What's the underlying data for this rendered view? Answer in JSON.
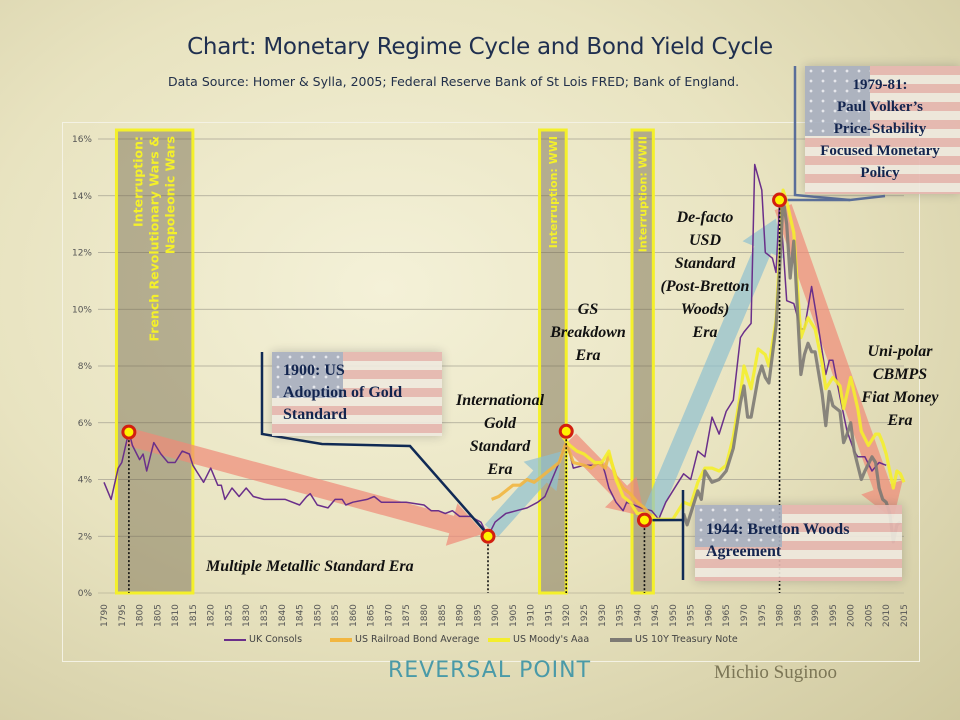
{
  "title": "Chart: Monetary Regime Cycle and Bond Yield Cycle",
  "subtitle": "Data Source: Homer & Sylla, 2005; Federal Reserve Bank of St Lois FRED; Bank of England.",
  "footer": {
    "brand": "REVERSAL POINT",
    "author": "Michio Suginoo"
  },
  "chart_data": {
    "type": "line",
    "xlim": [
      1790,
      2015
    ],
    "ylim": [
      0,
      16
    ],
    "x_ticks_step": 5,
    "y_ticks": [
      "0%",
      "2%",
      "4%",
      "6%",
      "8%",
      "10%",
      "12%",
      "14%",
      "16%"
    ],
    "grid": true,
    "legend_position": "bottom",
    "series": [
      {
        "name": "UK Consols",
        "color": "#6a2f8a",
        "points": [
          [
            1790,
            3.9
          ],
          [
            1792,
            3.3
          ],
          [
            1794,
            4.4
          ],
          [
            1795,
            4.6
          ],
          [
            1797,
            5.7
          ],
          [
            1798,
            5.2
          ],
          [
            1800,
            4.7
          ],
          [
            1801,
            4.9
          ],
          [
            1802,
            4.3
          ],
          [
            1804,
            5.3
          ],
          [
            1806,
            4.9
          ],
          [
            1808,
            4.6
          ],
          [
            1810,
            4.6
          ],
          [
            1812,
            5.0
          ],
          [
            1814,
            4.9
          ],
          [
            1815,
            4.5
          ],
          [
            1816,
            4.3
          ],
          [
            1818,
            3.9
          ],
          [
            1820,
            4.4
          ],
          [
            1822,
            3.8
          ],
          [
            1823,
            3.8
          ],
          [
            1824,
            3.3
          ],
          [
            1826,
            3.7
          ],
          [
            1828,
            3.4
          ],
          [
            1830,
            3.7
          ],
          [
            1832,
            3.4
          ],
          [
            1835,
            3.3
          ],
          [
            1838,
            3.3
          ],
          [
            1841,
            3.3
          ],
          [
            1845,
            3.1
          ],
          [
            1847,
            3.4
          ],
          [
            1848,
            3.5
          ],
          [
            1850,
            3.1
          ],
          [
            1853,
            3.0
          ],
          [
            1855,
            3.3
          ],
          [
            1857,
            3.3
          ],
          [
            1858,
            3.1
          ],
          [
            1860,
            3.2
          ],
          [
            1864,
            3.3
          ],
          [
            1866,
            3.4
          ],
          [
            1868,
            3.2
          ],
          [
            1870,
            3.2
          ],
          [
            1875,
            3.2
          ],
          [
            1880,
            3.1
          ],
          [
            1882,
            2.9
          ],
          [
            1884,
            2.9
          ],
          [
            1886,
            2.8
          ],
          [
            1888,
            2.9
          ],
          [
            1890,
            2.7
          ],
          [
            1893,
            2.7
          ],
          [
            1896,
            2.5
          ],
          [
            1898,
            2.0
          ],
          [
            1900,
            2.5
          ],
          [
            1903,
            2.8
          ],
          [
            1906,
            2.9
          ],
          [
            1909,
            3.0
          ],
          [
            1912,
            3.2
          ],
          [
            1914,
            3.4
          ],
          [
            1916,
            4.0
          ],
          [
            1918,
            4.6
          ],
          [
            1920,
            5.3
          ],
          [
            1921,
            4.9
          ],
          [
            1922,
            4.4
          ],
          [
            1925,
            4.5
          ],
          [
            1928,
            4.5
          ],
          [
            1930,
            4.6
          ],
          [
            1931,
            4.2
          ],
          [
            1932,
            3.7
          ],
          [
            1934,
            3.2
          ],
          [
            1936,
            2.9
          ],
          [
            1937,
            3.2
          ],
          [
            1939,
            3.1
          ],
          [
            1941,
            3.0
          ],
          [
            1944,
            2.9
          ],
          [
            1946,
            2.6
          ],
          [
            1948,
            3.2
          ],
          [
            1951,
            3.8
          ],
          [
            1953,
            4.2
          ],
          [
            1955,
            4.0
          ],
          [
            1957,
            5.0
          ],
          [
            1959,
            4.8
          ],
          [
            1961,
            6.2
          ],
          [
            1963,
            5.6
          ],
          [
            1965,
            6.4
          ],
          [
            1967,
            6.8
          ],
          [
            1969,
            9.0
          ],
          [
            1970,
            9.2
          ],
          [
            1972,
            9.5
          ],
          [
            1973,
            15.1
          ],
          [
            1975,
            14.2
          ],
          [
            1976,
            12.0
          ],
          [
            1978,
            11.8
          ],
          [
            1979,
            11.3
          ],
          [
            1980,
            13.8
          ],
          [
            1981,
            12.2
          ],
          [
            1982,
            10.3
          ],
          [
            1984,
            10.2
          ],
          [
            1986,
            9.3
          ],
          [
            1987,
            9.3
          ],
          [
            1989,
            10.8
          ],
          [
            1991,
            9.3
          ],
          [
            1993,
            7.7
          ],
          [
            1994,
            8.2
          ],
          [
            1995,
            8.2
          ],
          [
            1997,
            6.9
          ],
          [
            1999,
            5.7
          ],
          [
            2001,
            5.0
          ],
          [
            2002,
            4.8
          ],
          [
            2004,
            4.8
          ],
          [
            2006,
            4.3
          ],
          [
            2008,
            4.6
          ],
          [
            2010,
            4.5
          ]
        ]
      },
      {
        "name": "US Railroad Bond Average",
        "color": "#f2b640",
        "points": [
          [
            1899,
            3.3
          ],
          [
            1901,
            3.4
          ],
          [
            1903,
            3.6
          ],
          [
            1905,
            3.8
          ],
          [
            1907,
            3.8
          ],
          [
            1909,
            4.0
          ],
          [
            1911,
            3.9
          ],
          [
            1913,
            4.1
          ],
          [
            1915,
            4.3
          ],
          [
            1918,
            4.6
          ],
          [
            1920,
            5.3
          ],
          [
            1922,
            4.6
          ],
          [
            1925,
            4.5
          ],
          [
            1927,
            4.4
          ],
          [
            1929,
            4.6
          ],
          [
            1931,
            4.4
          ],
          [
            1932,
            4.9
          ],
          [
            1934,
            4.1
          ],
          [
            1936,
            3.7
          ],
          [
            1938,
            3.5
          ],
          [
            1940,
            3.2
          ],
          [
            1942,
            3.0
          ],
          [
            1944,
            2.7
          ]
        ]
      },
      {
        "name": "US Moody's Aaa",
        "color": "#f4ee2c",
        "points": [
          [
            1919,
            5.5
          ],
          [
            1921,
            5.2
          ],
          [
            1923,
            5.0
          ],
          [
            1925,
            4.9
          ],
          [
            1928,
            4.6
          ],
          [
            1930,
            4.6
          ],
          [
            1931,
            4.8
          ],
          [
            1932,
            5.0
          ],
          [
            1934,
            4.0
          ],
          [
            1936,
            3.4
          ],
          [
            1938,
            3.2
          ],
          [
            1940,
            2.8
          ],
          [
            1942,
            2.8
          ],
          [
            1945,
            2.6
          ],
          [
            1947,
            2.6
          ],
          [
            1950,
            2.6
          ],
          [
            1953,
            3.2
          ],
          [
            1955,
            3.1
          ],
          [
            1957,
            3.9
          ],
          [
            1959,
            4.4
          ],
          [
            1961,
            4.4
          ],
          [
            1963,
            4.3
          ],
          [
            1965,
            4.5
          ],
          [
            1967,
            5.5
          ],
          [
            1969,
            7.0
          ],
          [
            1970,
            8.0
          ],
          [
            1972,
            7.2
          ],
          [
            1974,
            8.6
          ],
          [
            1976,
            8.4
          ],
          [
            1977,
            8.0
          ],
          [
            1979,
            9.6
          ],
          [
            1980,
            11.9
          ],
          [
            1981,
            14.2
          ],
          [
            1982,
            13.8
          ],
          [
            1984,
            12.7
          ],
          [
            1986,
            9.0
          ],
          [
            1988,
            9.7
          ],
          [
            1990,
            9.3
          ],
          [
            1992,
            8.1
          ],
          [
            1993,
            7.2
          ],
          [
            1995,
            7.6
          ],
          [
            1997,
            7.3
          ],
          [
            1998,
            6.5
          ],
          [
            2000,
            7.6
          ],
          [
            2002,
            6.5
          ],
          [
            2003,
            5.7
          ],
          [
            2005,
            5.2
          ],
          [
            2007,
            5.6
          ],
          [
            2008,
            5.6
          ],
          [
            2009,
            5.3
          ],
          [
            2010,
            4.9
          ],
          [
            2012,
            3.7
          ],
          [
            2013,
            4.3
          ],
          [
            2014,
            4.2
          ],
          [
            2015,
            3.9
          ]
        ]
      },
      {
        "name": "US 10Y Treasury Note",
        "color": "#7d7a74",
        "points": [
          [
            1953,
            2.8
          ],
          [
            1954,
            2.4
          ],
          [
            1955,
            2.8
          ],
          [
            1957,
            3.6
          ],
          [
            1958,
            3.3
          ],
          [
            1959,
            4.3
          ],
          [
            1961,
            3.9
          ],
          [
            1963,
            4.0
          ],
          [
            1965,
            4.3
          ],
          [
            1967,
            5.1
          ],
          [
            1969,
            6.7
          ],
          [
            1970,
            7.3
          ],
          [
            1971,
            6.2
          ],
          [
            1972,
            6.2
          ],
          [
            1974,
            7.6
          ],
          [
            1975,
            8.0
          ],
          [
            1976,
            7.6
          ],
          [
            1977,
            7.4
          ],
          [
            1979,
            9.4
          ],
          [
            1980,
            11.4
          ],
          [
            1981,
            13.9
          ],
          [
            1982,
            13.0
          ],
          [
            1983,
            11.1
          ],
          [
            1984,
            12.4
          ],
          [
            1986,
            7.7
          ],
          [
            1987,
            8.4
          ],
          [
            1988,
            8.8
          ],
          [
            1989,
            8.5
          ],
          [
            1990,
            8.5
          ],
          [
            1992,
            7.0
          ],
          [
            1993,
            5.9
          ],
          [
            1994,
            7.1
          ],
          [
            1995,
            6.6
          ],
          [
            1997,
            6.4
          ],
          [
            1998,
            5.3
          ],
          [
            1999,
            5.6
          ],
          [
            2000,
            6.0
          ],
          [
            2001,
            5.0
          ],
          [
            2003,
            4.0
          ],
          [
            2004,
            4.3
          ],
          [
            2006,
            4.8
          ],
          [
            2007,
            4.6
          ],
          [
            2008,
            3.7
          ],
          [
            2009,
            3.3
          ],
          [
            2010,
            3.2
          ],
          [
            2011,
            2.8
          ],
          [
            2012,
            1.8
          ],
          [
            2013,
            2.4
          ],
          [
            2014,
            2.5
          ]
        ]
      }
    ],
    "interruptions": [
      {
        "from": 1793.5,
        "to": 1815,
        "label": "Interruption: French Revolutionary Wars & Napoleonic Wars",
        "line1": "Interruption:",
        "line2": "French Revolutionary Wars &",
        "line3": "Napoleonic Wars"
      },
      {
        "from": 1912.5,
        "to": 1920,
        "label": "Interruption: WWI"
      },
      {
        "from": 1938.5,
        "to": 1944.5,
        "label": "Interruption: WWII"
      }
    ],
    "reversal_points": [
      [
        1797,
        5.67
      ],
      [
        1898,
        2.0
      ],
      [
        1920,
        5.7
      ],
      [
        1942,
        2.57
      ],
      [
        1980,
        13.85
      ]
    ],
    "trend_arrows": [
      {
        "direction": "down",
        "from": [
          1797,
          5.5
        ],
        "to": [
          1897,
          2.1
        ]
      },
      {
        "direction": "up",
        "from": [
          1899,
          2.2
        ],
        "to": [
          1919,
          5.0
        ]
      },
      {
        "direction": "down",
        "from": [
          1921,
          5.4
        ],
        "to": [
          1942,
          2.7
        ]
      },
      {
        "direction": "up",
        "from": [
          1944,
          2.8
        ],
        "to": [
          1979,
          13.2
        ]
      },
      {
        "direction": "down",
        "from": [
          1981,
          13.6
        ],
        "to": [
          2012,
          2.6
        ]
      }
    ],
    "arrow_colors": {
      "down": "#f08a78",
      "up": "#8fc0d0"
    },
    "eras": [
      {
        "id": "multiple",
        "text": "Multiple Metallic Standard Era"
      },
      {
        "id": "igs",
        "lines": [
          "International",
          "Gold",
          "Standard",
          "Era"
        ]
      },
      {
        "id": "gsb",
        "lines": [
          "GS",
          "Breakdown",
          "Era"
        ]
      },
      {
        "id": "usd",
        "lines": [
          "De-facto",
          "USD",
          "Standard",
          "(Post-Bretton",
          "Woods)",
          "Era"
        ]
      },
      {
        "id": "unipolar",
        "lines": [
          "Uni-polar",
          "CBMPS",
          "Fiat Money",
          "Era"
        ]
      }
    ],
    "callouts": [
      {
        "id": "us1900",
        "lines": [
          "1900: US",
          "Adoption of Gold",
          "Standard"
        ]
      },
      {
        "id": "bw1944",
        "lines": [
          "1944: Bretton Woods",
          "Agreement"
        ]
      },
      {
        "id": "volker",
        "lines": [
          "1979-81:",
          "Paul Volker’s",
          "Price-Stability",
          "Focused Monetary",
          "Policy"
        ]
      }
    ]
  }
}
